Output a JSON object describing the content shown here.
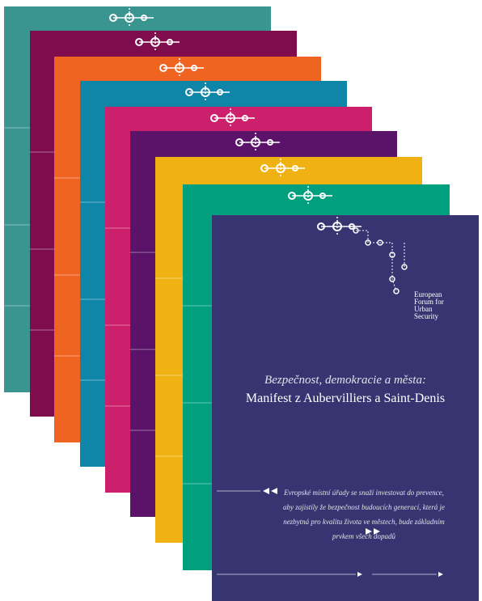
{
  "logo": {
    "lines": [
      "European",
      "Forum for",
      "Urban",
      "Security"
    ]
  },
  "title": "Bezpečnost, demokracie a města:",
  "subtitle": "Manifest z Aubervilliers a Saint-Denis",
  "quote": {
    "lines": [
      "Evropské místní úřady se snaží investovat do prevence,",
      "aby zajistily že bezpečnost budoucích generací, která je",
      "nezbytná pro kvalitu života ve městech, bude základním",
      "prvkem všech dopadů"
    ]
  }
}
